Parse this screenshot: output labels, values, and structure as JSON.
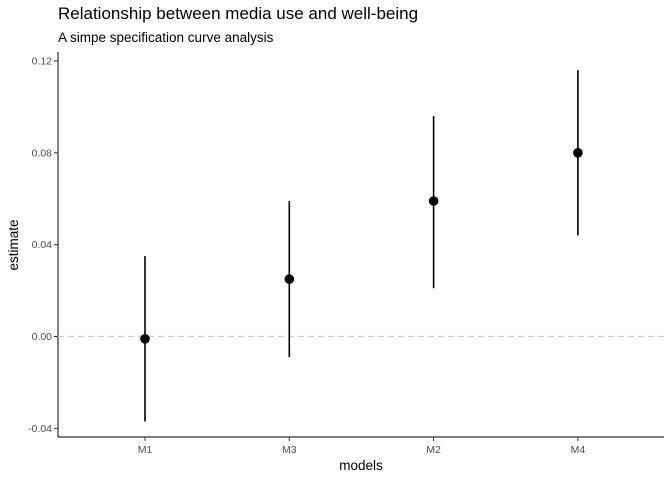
{
  "chart_data": {
    "type": "scatter",
    "title": "Relationship between media use and well-being",
    "subtitle": "A simpe specification curve analysis",
    "xlabel": "models",
    "ylabel": "estimate",
    "categories": [
      "M1",
      "M3",
      "M2",
      "M4"
    ],
    "estimate": [
      -0.001,
      0.025,
      0.059,
      0.08
    ],
    "lower": [
      -0.037,
      -0.009,
      0.021,
      0.044
    ],
    "upper": [
      0.035,
      0.059,
      0.096,
      0.116
    ],
    "yticks": [
      -0.04,
      0.0,
      0.04,
      0.08,
      0.12
    ],
    "ytick_labels": [
      "-0.04",
      "0.00",
      "0.04",
      "0.08",
      "0.12"
    ],
    "ylim": [
      -0.044,
      0.123
    ],
    "reference_line": 0,
    "grid": false
  }
}
